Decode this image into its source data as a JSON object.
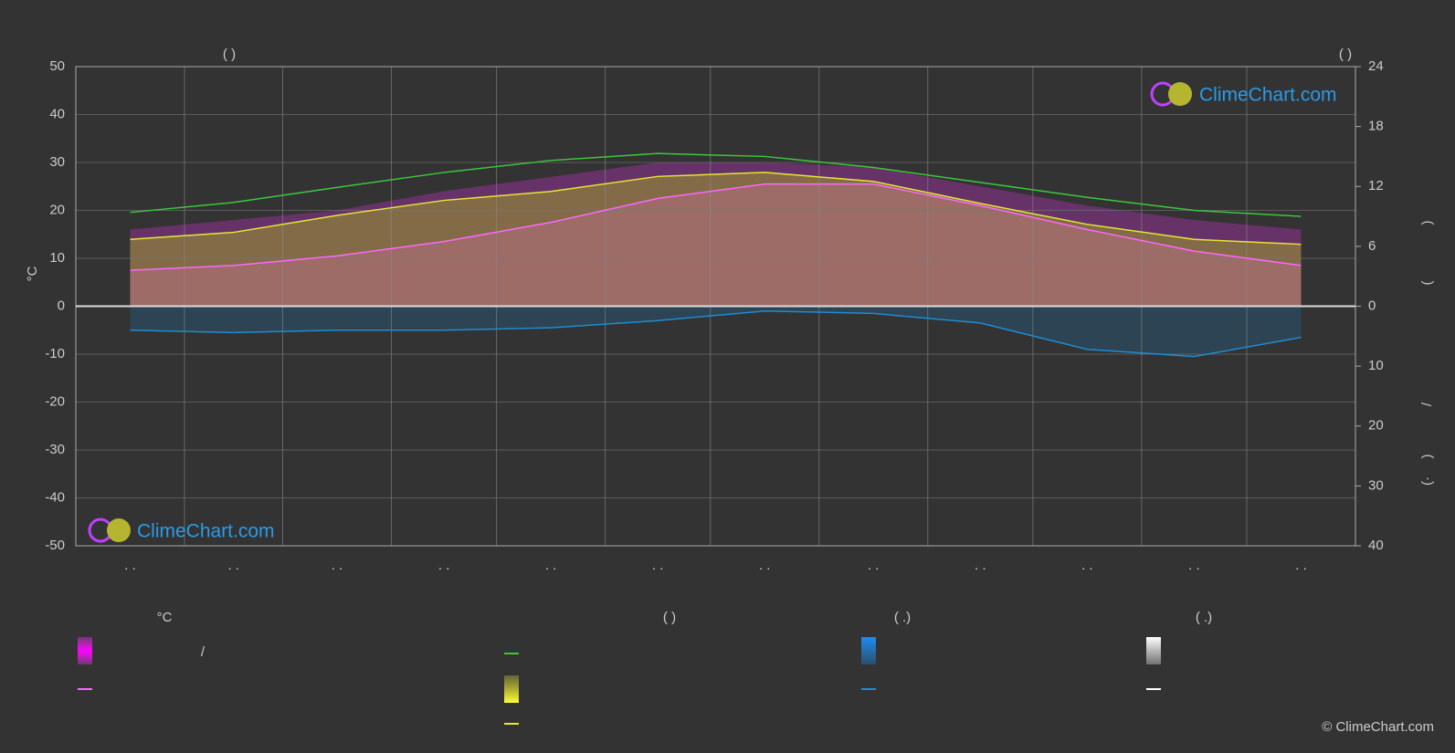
{
  "chart_data": {
    "type": "line",
    "header_labels": [
      "(       )",
      "(       )"
    ],
    "y_label": "°C",
    "right_axis_labels": [
      ")",
      "(",
      "/",
      ")",
      "(·"
    ],
    "categories": [
      ". .",
      ". .",
      ". .",
      ". .",
      ". .",
      ". .",
      ". .",
      ". .",
      ". .",
      ". .",
      ". .",
      ". ."
    ],
    "ylim": [
      -50,
      50
    ],
    "yticks": [
      -50,
      -40,
      -30,
      -20,
      -10,
      0,
      10,
      20,
      30,
      40,
      50
    ],
    "y2lim": [
      0,
      24
    ],
    "y2ticks": [
      0,
      6,
      12,
      18,
      24
    ],
    "y3lim": [
      0,
      40
    ],
    "y3ticks": [
      10,
      20,
      30,
      40
    ],
    "grid": true,
    "series": [
      {
        "color": "#3cc83c",
        "axis": "y2",
        "values": [
          9.4,
          10.4,
          11.9,
          13.4,
          14.6,
          15.3,
          15.0,
          13.9,
          12.4,
          10.9,
          9.6,
          9.0
        ]
      },
      {
        "color": "#e6e632",
        "axis": "y2",
        "values": [
          6.7,
          7.4,
          9.1,
          10.6,
          11.5,
          13.0,
          13.4,
          12.5,
          10.3,
          8.2,
          6.7,
          6.2
        ]
      },
      {
        "color": "#ff66ff",
        "values": [
          7.5,
          8.5,
          10.5,
          13.5,
          17.5,
          22.5,
          25.5,
          25.5,
          21,
          16,
          11.5,
          8.5
        ]
      },
      {
        "color": "#1e8cd2",
        "axis": "y3",
        "values": [
          4,
          4.4,
          4,
          4,
          3.6,
          2.4,
          0.8,
          1.2,
          2.8,
          7.2,
          8.4,
          5.2
        ]
      },
      {
        "color": "#c832c8",
        "values": [
          16,
          18,
          20,
          24,
          27,
          30,
          30,
          29,
          25,
          21,
          18,
          16
        ]
      }
    ],
    "legend_texts": [
      "°C",
      "(          )",
      "(   .)",
      "(   .)",
      "/"
    ],
    "logo": "ClimeChart.com",
    "copyright": "© ClimeChart.com"
  }
}
